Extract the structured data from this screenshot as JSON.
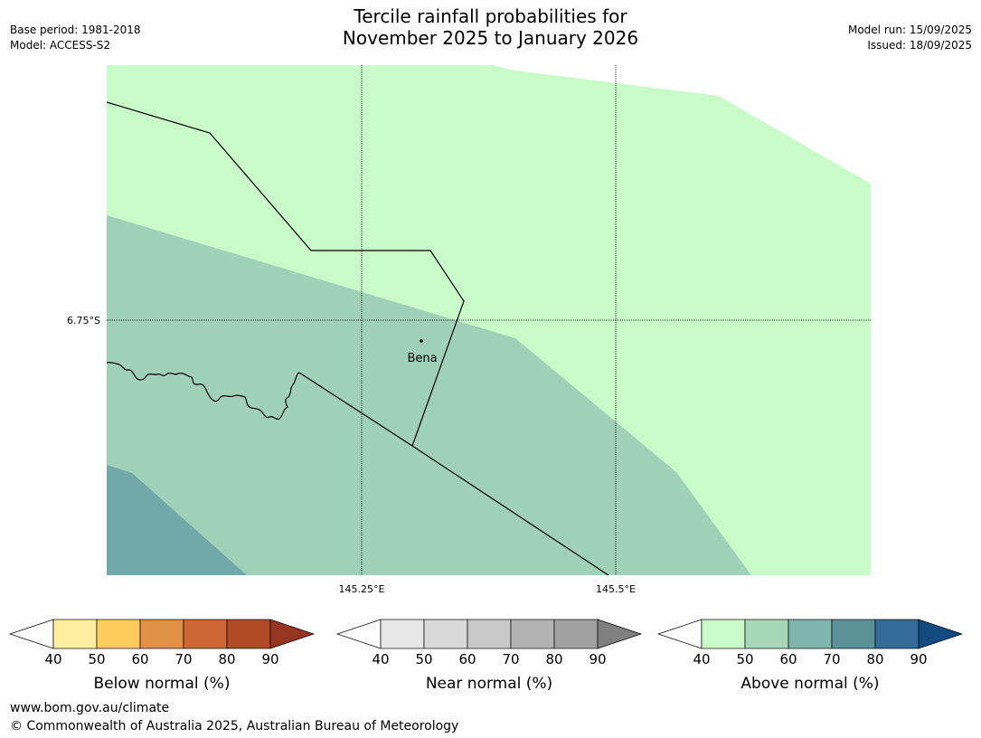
{
  "title": {
    "line1": "Tercile rainfall probabilities for",
    "line2": "November 2025 to January 2026"
  },
  "meta_left": {
    "base_period": "Base period: 1981-2018",
    "model": "Model: ACCESS-S2"
  },
  "meta_right": {
    "model_run": "Model run: 15/09/2025",
    "issued": "Issued: 18/09/2025"
  },
  "map": {
    "lat_label": "6.75°S",
    "lon_labels": [
      "145.25°E",
      "145.5°E"
    ],
    "place": "Bena",
    "colors": {
      "above_50": "#c9fbc9",
      "above_60": "#9fd1b9",
      "above_70": "#72a8aa",
      "border": "#000000",
      "grid": "#000000"
    }
  },
  "colorbars": {
    "ticks": [
      "40",
      "50",
      "60",
      "70",
      "80",
      "90"
    ],
    "below": {
      "label": "Below normal (%)",
      "colors": [
        "#ffffff",
        "#ffeda0",
        "#fecc5c",
        "#e09145",
        "#d06634",
        "#b04b26",
        "#963621"
      ]
    },
    "near": {
      "label": "Near normal (%)",
      "colors": [
        "#ffffff",
        "#e6e6e6",
        "#d9d9d9",
        "#c8c8c8",
        "#b3b3b3",
        "#a0a0a0",
        "#808080"
      ]
    },
    "above": {
      "label": "Above normal (%)",
      "colors": [
        "#ffffff",
        "#c9fbc9",
        "#a6d8b8",
        "#7fb5ac",
        "#5b9199",
        "#336b99",
        "#134a80"
      ]
    }
  },
  "footer": {
    "website": "www.bom.gov.au/climate",
    "copyright": "© Commonwealth of Australia 2025, Australian Bureau of Meteorology"
  }
}
